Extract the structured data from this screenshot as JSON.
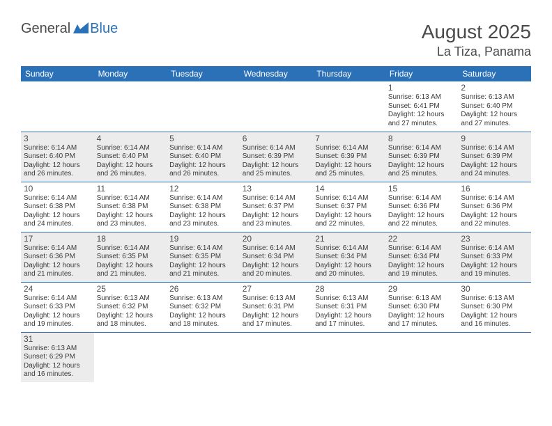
{
  "logo": {
    "text1": "General",
    "text2": "Blue"
  },
  "title": {
    "month_year": "August 2025",
    "location": "La Tiza, Panama"
  },
  "colors": {
    "header_bg": "#2a71b8",
    "header_text": "#ffffff",
    "border": "#2a71b8",
    "shaded_bg": "#ececec",
    "text": "#4a4a4a"
  },
  "day_headers": [
    "Sunday",
    "Monday",
    "Tuesday",
    "Wednesday",
    "Thursday",
    "Friday",
    "Saturday"
  ],
  "weeks": [
    [
      null,
      null,
      null,
      null,
      null,
      {
        "n": "1",
        "sr": "Sunrise: 6:13 AM",
        "ss": "Sunset: 6:41 PM",
        "dl": "Daylight: 12 hours and 27 minutes."
      },
      {
        "n": "2",
        "sr": "Sunrise: 6:13 AM",
        "ss": "Sunset: 6:40 PM",
        "dl": "Daylight: 12 hours and 27 minutes."
      }
    ],
    [
      {
        "n": "3",
        "sr": "Sunrise: 6:14 AM",
        "ss": "Sunset: 6:40 PM",
        "dl": "Daylight: 12 hours and 26 minutes."
      },
      {
        "n": "4",
        "sr": "Sunrise: 6:14 AM",
        "ss": "Sunset: 6:40 PM",
        "dl": "Daylight: 12 hours and 26 minutes."
      },
      {
        "n": "5",
        "sr": "Sunrise: 6:14 AM",
        "ss": "Sunset: 6:40 PM",
        "dl": "Daylight: 12 hours and 26 minutes."
      },
      {
        "n": "6",
        "sr": "Sunrise: 6:14 AM",
        "ss": "Sunset: 6:39 PM",
        "dl": "Daylight: 12 hours and 25 minutes."
      },
      {
        "n": "7",
        "sr": "Sunrise: 6:14 AM",
        "ss": "Sunset: 6:39 PM",
        "dl": "Daylight: 12 hours and 25 minutes."
      },
      {
        "n": "8",
        "sr": "Sunrise: 6:14 AM",
        "ss": "Sunset: 6:39 PM",
        "dl": "Daylight: 12 hours and 25 minutes."
      },
      {
        "n": "9",
        "sr": "Sunrise: 6:14 AM",
        "ss": "Sunset: 6:39 PM",
        "dl": "Daylight: 12 hours and 24 minutes."
      }
    ],
    [
      {
        "n": "10",
        "sr": "Sunrise: 6:14 AM",
        "ss": "Sunset: 6:38 PM",
        "dl": "Daylight: 12 hours and 24 minutes."
      },
      {
        "n": "11",
        "sr": "Sunrise: 6:14 AM",
        "ss": "Sunset: 6:38 PM",
        "dl": "Daylight: 12 hours and 23 minutes."
      },
      {
        "n": "12",
        "sr": "Sunrise: 6:14 AM",
        "ss": "Sunset: 6:38 PM",
        "dl": "Daylight: 12 hours and 23 minutes."
      },
      {
        "n": "13",
        "sr": "Sunrise: 6:14 AM",
        "ss": "Sunset: 6:37 PM",
        "dl": "Daylight: 12 hours and 23 minutes."
      },
      {
        "n": "14",
        "sr": "Sunrise: 6:14 AM",
        "ss": "Sunset: 6:37 PM",
        "dl": "Daylight: 12 hours and 22 minutes."
      },
      {
        "n": "15",
        "sr": "Sunrise: 6:14 AM",
        "ss": "Sunset: 6:36 PM",
        "dl": "Daylight: 12 hours and 22 minutes."
      },
      {
        "n": "16",
        "sr": "Sunrise: 6:14 AM",
        "ss": "Sunset: 6:36 PM",
        "dl": "Daylight: 12 hours and 22 minutes."
      }
    ],
    [
      {
        "n": "17",
        "sr": "Sunrise: 6:14 AM",
        "ss": "Sunset: 6:36 PM",
        "dl": "Daylight: 12 hours and 21 minutes."
      },
      {
        "n": "18",
        "sr": "Sunrise: 6:14 AM",
        "ss": "Sunset: 6:35 PM",
        "dl": "Daylight: 12 hours and 21 minutes."
      },
      {
        "n": "19",
        "sr": "Sunrise: 6:14 AM",
        "ss": "Sunset: 6:35 PM",
        "dl": "Daylight: 12 hours and 21 minutes."
      },
      {
        "n": "20",
        "sr": "Sunrise: 6:14 AM",
        "ss": "Sunset: 6:34 PM",
        "dl": "Daylight: 12 hours and 20 minutes."
      },
      {
        "n": "21",
        "sr": "Sunrise: 6:14 AM",
        "ss": "Sunset: 6:34 PM",
        "dl": "Daylight: 12 hours and 20 minutes."
      },
      {
        "n": "22",
        "sr": "Sunrise: 6:14 AM",
        "ss": "Sunset: 6:34 PM",
        "dl": "Daylight: 12 hours and 19 minutes."
      },
      {
        "n": "23",
        "sr": "Sunrise: 6:14 AM",
        "ss": "Sunset: 6:33 PM",
        "dl": "Daylight: 12 hours and 19 minutes."
      }
    ],
    [
      {
        "n": "24",
        "sr": "Sunrise: 6:14 AM",
        "ss": "Sunset: 6:33 PM",
        "dl": "Daylight: 12 hours and 19 minutes."
      },
      {
        "n": "25",
        "sr": "Sunrise: 6:13 AM",
        "ss": "Sunset: 6:32 PM",
        "dl": "Daylight: 12 hours and 18 minutes."
      },
      {
        "n": "26",
        "sr": "Sunrise: 6:13 AM",
        "ss": "Sunset: 6:32 PM",
        "dl": "Daylight: 12 hours and 18 minutes."
      },
      {
        "n": "27",
        "sr": "Sunrise: 6:13 AM",
        "ss": "Sunset: 6:31 PM",
        "dl": "Daylight: 12 hours and 17 minutes."
      },
      {
        "n": "28",
        "sr": "Sunrise: 6:13 AM",
        "ss": "Sunset: 6:31 PM",
        "dl": "Daylight: 12 hours and 17 minutes."
      },
      {
        "n": "29",
        "sr": "Sunrise: 6:13 AM",
        "ss": "Sunset: 6:30 PM",
        "dl": "Daylight: 12 hours and 17 minutes."
      },
      {
        "n": "30",
        "sr": "Sunrise: 6:13 AM",
        "ss": "Sunset: 6:30 PM",
        "dl": "Daylight: 12 hours and 16 minutes."
      }
    ],
    [
      {
        "n": "31",
        "sr": "Sunrise: 6:13 AM",
        "ss": "Sunset: 6:29 PM",
        "dl": "Daylight: 12 hours and 16 minutes."
      },
      null,
      null,
      null,
      null,
      null,
      null
    ]
  ]
}
